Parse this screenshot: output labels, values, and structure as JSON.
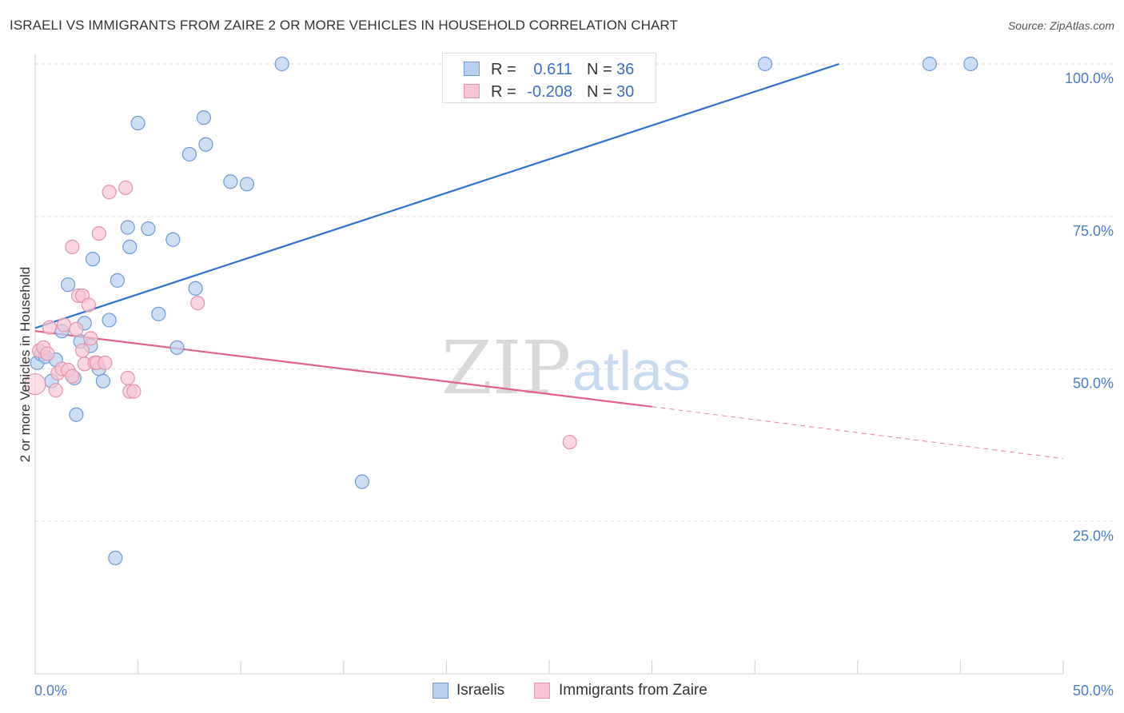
{
  "header": {
    "title": "ISRAELI VS IMMIGRANTS FROM ZAIRE 2 OR MORE VEHICLES IN HOUSEHOLD CORRELATION CHART",
    "source": "Source: ZipAtlas.com"
  },
  "watermark": {
    "zip": "ZIP",
    "atlas": "atlas"
  },
  "legend": {
    "rows": [
      {
        "r_label": "R =",
        "r_value": "0.611",
        "n_label": "N =",
        "n_value": "36"
      },
      {
        "r_label": "R =",
        "r_value": "-0.208",
        "n_label": "N =",
        "n_value": "30"
      }
    ]
  },
  "bottom_legend": {
    "items": [
      {
        "label": "Israelis"
      },
      {
        "label": "Immigrants from Zaire"
      }
    ]
  },
  "colors": {
    "blue_fill": "#b8d0f0",
    "blue_stroke": "#6f9ad8",
    "blue_line": "#2e6fd0",
    "pink_fill": "#f7c5d4",
    "pink_stroke": "#e393ad",
    "pink_line": "#e0608e",
    "grid": "#dedede",
    "tick_text": "#4a7cc7"
  },
  "chart_data": {
    "type": "scatter",
    "title": "ISRAELI VS IMMIGRANTS FROM ZAIRE 2 OR MORE VEHICLES IN HOUSEHOLD CORRELATION CHART",
    "xlabel": "",
    "ylabel": "2 or more Vehicles in Household",
    "xlim": [
      0,
      50
    ],
    "ylim": [
      0,
      100
    ],
    "x_tick_labels": [
      "0.0%",
      "50.0%"
    ],
    "y_ticks": [
      25,
      50,
      75,
      100
    ],
    "y_tick_labels": [
      "25.0%",
      "50.0%",
      "75.0%",
      "100.0%"
    ],
    "grid": true,
    "legend_position": "top-center",
    "series": [
      {
        "name": "Israelis",
        "color": "#6f9ad8",
        "points": [
          {
            "x": 0.1,
            "y": 51.0
          },
          {
            "x": 0.3,
            "y": 52.4
          },
          {
            "x": 0.5,
            "y": 52.0
          },
          {
            "x": 0.8,
            "y": 48.0
          },
          {
            "x": 1.0,
            "y": 51.5
          },
          {
            "x": 1.3,
            "y": 56.2
          },
          {
            "x": 1.6,
            "y": 63.8
          },
          {
            "x": 1.9,
            "y": 48.5
          },
          {
            "x": 2.0,
            "y": 42.5
          },
          {
            "x": 2.2,
            "y": 54.5
          },
          {
            "x": 2.4,
            "y": 57.5
          },
          {
            "x": 2.7,
            "y": 53.8
          },
          {
            "x": 2.8,
            "y": 68.0
          },
          {
            "x": 3.1,
            "y": 50.0
          },
          {
            "x": 3.3,
            "y": 48.0
          },
          {
            "x": 3.6,
            "y": 58.0
          },
          {
            "x": 3.9,
            "y": 19.0
          },
          {
            "x": 4.0,
            "y": 64.5
          },
          {
            "x": 4.6,
            "y": 70.0
          },
          {
            "x": 4.5,
            "y": 73.2
          },
          {
            "x": 5.0,
            "y": 90.3
          },
          {
            "x": 5.5,
            "y": 73.0
          },
          {
            "x": 6.0,
            "y": 59.0
          },
          {
            "x": 6.7,
            "y": 71.2
          },
          {
            "x": 6.9,
            "y": 53.5
          },
          {
            "x": 7.5,
            "y": 85.2
          },
          {
            "x": 7.8,
            "y": 63.2
          },
          {
            "x": 8.2,
            "y": 91.2
          },
          {
            "x": 8.3,
            "y": 86.8
          },
          {
            "x": 9.5,
            "y": 80.7
          },
          {
            "x": 10.3,
            "y": 80.3
          },
          {
            "x": 12.0,
            "y": 100.0
          },
          {
            "x": 15.9,
            "y": 31.5
          },
          {
            "x": 35.5,
            "y": 100.0
          },
          {
            "x": 43.5,
            "y": 100.0
          },
          {
            "x": 45.5,
            "y": 100.0
          }
        ],
        "trendline": {
          "x0": 0,
          "y0": 56.7,
          "x1": 39.1,
          "y1": 100.0
        }
      },
      {
        "name": "Immigrants from Zaire",
        "color": "#e393ad",
        "points": [
          {
            "x": 0.0,
            "y": 47.5
          },
          {
            "x": 0.2,
            "y": 53.0
          },
          {
            "x": 0.4,
            "y": 53.5
          },
          {
            "x": 0.6,
            "y": 52.5
          },
          {
            "x": 0.7,
            "y": 56.8
          },
          {
            "x": 1.0,
            "y": 46.5
          },
          {
            "x": 1.1,
            "y": 49.3
          },
          {
            "x": 1.3,
            "y": 50.0
          },
          {
            "x": 1.4,
            "y": 57.2
          },
          {
            "x": 1.6,
            "y": 49.8
          },
          {
            "x": 1.8,
            "y": 48.8
          },
          {
            "x": 1.8,
            "y": 70.0
          },
          {
            "x": 2.0,
            "y": 56.5
          },
          {
            "x": 2.1,
            "y": 62.0
          },
          {
            "x": 2.3,
            "y": 62.0
          },
          {
            "x": 2.3,
            "y": 53.0
          },
          {
            "x": 2.4,
            "y": 50.8
          },
          {
            "x": 2.6,
            "y": 60.5
          },
          {
            "x": 2.7,
            "y": 55.0
          },
          {
            "x": 2.9,
            "y": 51.0
          },
          {
            "x": 3.0,
            "y": 51.0
          },
          {
            "x": 3.1,
            "y": 72.2
          },
          {
            "x": 3.6,
            "y": 79.0
          },
          {
            "x": 3.4,
            "y": 51.0
          },
          {
            "x": 4.4,
            "y": 79.7
          },
          {
            "x": 4.5,
            "y": 48.5
          },
          {
            "x": 4.6,
            "y": 46.3
          },
          {
            "x": 7.9,
            "y": 60.8
          },
          {
            "x": 4.8,
            "y": 46.3
          },
          {
            "x": 26.0,
            "y": 38.0
          }
        ],
        "trendline": {
          "x0": 0,
          "y0": 56.2,
          "x1": 30.0,
          "y1": 43.8
        },
        "trendline_dashed": {
          "x0": 30.0,
          "y0": 43.8,
          "x1": 50.0,
          "y1": 35.3
        }
      }
    ]
  }
}
